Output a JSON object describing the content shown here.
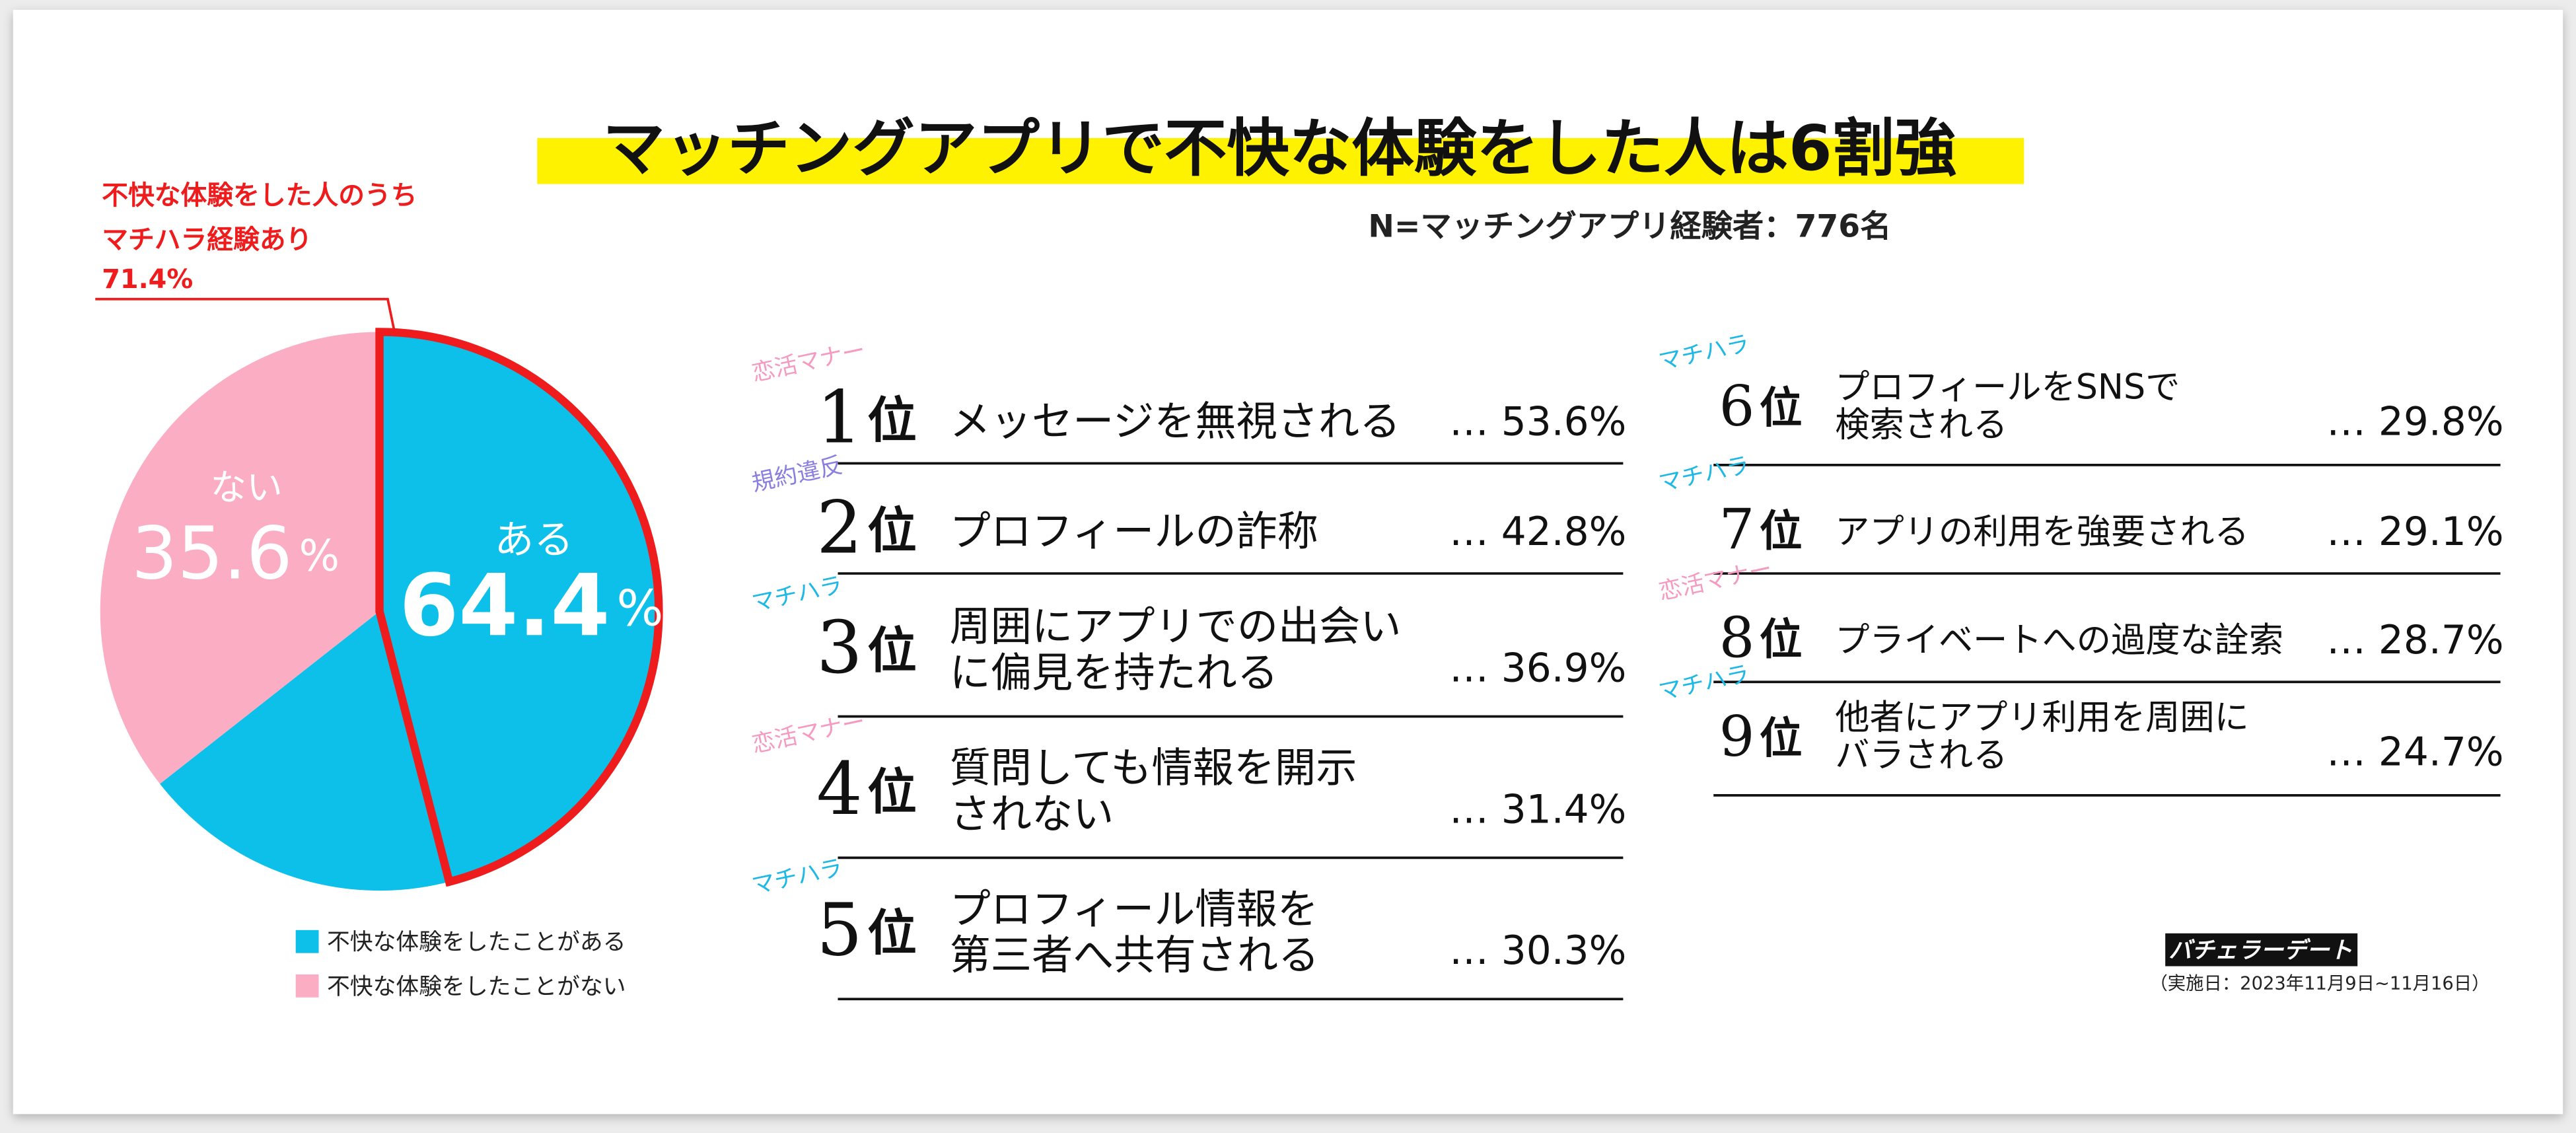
{
  "chart_data": {
    "type": "pie",
    "title": "マッチングアプリで不快な体験をした人は6割強",
    "subtitle": "N=マッチングアプリ経験者：776名",
    "categories": [
      "ある",
      "ない"
    ],
    "values": [
      64.4,
      35.6
    ],
    "unit": "%",
    "colors": [
      "#0dc0ea",
      "#fbaec3"
    ],
    "legend": [
      "不快な体験をしたことがある",
      "不快な体験をしたことがない"
    ],
    "annotation": {
      "lines": [
        "不快な体験をした人のうち",
        "マチハラ経験あり"
      ],
      "value": 71.4,
      "value_label": "71.4%",
      "color": "#ee1c1c"
    }
  },
  "ranking": {
    "columns": [
      [
        {
          "tag": "恋活マナー",
          "tag_color": "#f59ac0",
          "rank": "1",
          "rank_unit": "位",
          "label": [
            "メッセージを無視される"
          ],
          "value": "… 53.6%"
        },
        {
          "tag": "規約違反",
          "tag_color": "#8a7fe0",
          "rank": "2",
          "rank_unit": "位",
          "label": [
            "プロフィールの詐称"
          ],
          "value": "… 42.8%"
        },
        {
          "tag": "マチハラ",
          "tag_color": "#1eb8e6",
          "rank": "3",
          "rank_unit": "位",
          "label": [
            "周囲にアプリでの出会い",
            "に偏見を持たれる"
          ],
          "value": "… 36.9%"
        },
        {
          "tag": "恋活マナー",
          "tag_color": "#f59ac0",
          "rank": "4",
          "rank_unit": "位",
          "label": [
            "質問しても情報を開示",
            "されない"
          ],
          "value": "… 31.4%"
        },
        {
          "tag": "マチハラ",
          "tag_color": "#1eb8e6",
          "rank": "5",
          "rank_unit": "位",
          "label": [
            "プロフィール情報を",
            "第三者へ共有される"
          ],
          "value": "… 30.3%"
        }
      ],
      [
        {
          "tag": "マチハラ",
          "tag_color": "#1eb8e6",
          "rank": "6",
          "rank_unit": "位",
          "label": [
            "プロフィールをSNSで",
            "検索される"
          ],
          "value": "… 29.8%"
        },
        {
          "tag": "マチハラ",
          "tag_color": "#1eb8e6",
          "rank": "7",
          "rank_unit": "位",
          "label": [
            "アプリの利用を強要される"
          ],
          "value": "… 29.1%"
        },
        {
          "tag": "恋活マナー",
          "tag_color": "#f59ac0",
          "rank": "8",
          "rank_unit": "位",
          "label": [
            "プライベートへの過度な詮索"
          ],
          "value": "… 28.7%"
        },
        {
          "tag": "マチハラ",
          "tag_color": "#1eb8e6",
          "rank": "9",
          "rank_unit": "位",
          "label": [
            "他者にアプリ利用を周囲に",
            "バラされる"
          ],
          "value": "… 24.7%"
        }
      ]
    ]
  },
  "footer": {
    "logo": "バチェラーデート",
    "date": "（実施日：2023年11月9日~11月16日）"
  }
}
